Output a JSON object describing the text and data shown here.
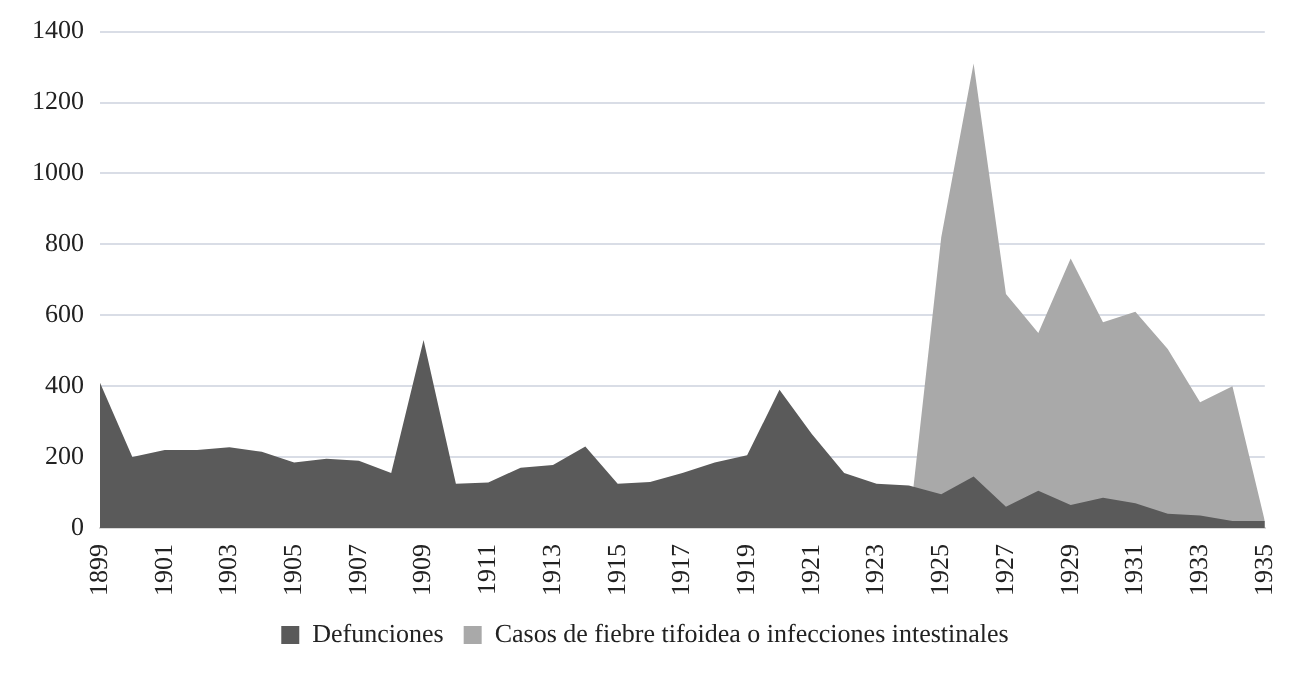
{
  "chart_data": {
    "type": "area",
    "categories": [
      "1899",
      null,
      "1901",
      null,
      "1903",
      null,
      "1905",
      null,
      "1907",
      null,
      "1909",
      null,
      "1911",
      null,
      "1913",
      null,
      "1915",
      null,
      "1917",
      null,
      "1919",
      null,
      "1921",
      null,
      "1923",
      null,
      "1925",
      null,
      "1927",
      null,
      "1929",
      null,
      "1931",
      null,
      "1933",
      null,
      "1935"
    ],
    "series": [
      {
        "name": "Defunciones",
        "color": "#5a5a5a",
        "values": [
          410,
          200,
          220,
          220,
          228,
          215,
          185,
          195,
          190,
          155,
          530,
          125,
          128,
          170,
          178,
          230,
          125,
          130,
          155,
          185,
          205,
          390,
          265,
          155,
          125,
          120,
          95,
          145,
          60,
          105,
          65,
          85,
          70,
          40,
          35,
          20,
          20
        ]
      },
      {
        "name": "Casos de fiebre tifoidea o infecciones intestinales",
        "color": "#a9a9a9",
        "values": [
          null,
          null,
          null,
          null,
          null,
          null,
          null,
          null,
          null,
          null,
          null,
          null,
          null,
          null,
          null,
          null,
          null,
          null,
          null,
          null,
          null,
          null,
          null,
          null,
          null,
          0,
          820,
          1310,
          660,
          550,
          760,
          580,
          610,
          505,
          355,
          400,
          20
        ]
      }
    ],
    "ylim": [
      0,
      1400
    ],
    "yticks": [
      0,
      200,
      400,
      600,
      800,
      1000,
      1200,
      1400
    ],
    "grid": "y",
    "legend": "bottom"
  }
}
